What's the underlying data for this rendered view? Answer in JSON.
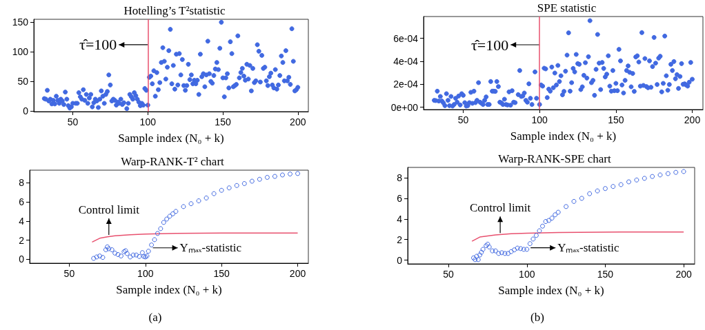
{
  "chart_data": [
    {
      "type": "scatter",
      "title": "Hotelling’s T²statistic",
      "xlabel": "Sample index (N₀ + k)",
      "marker": "circle",
      "color": "#4169e1",
      "x": [
        31,
        32,
        33,
        34,
        35,
        36,
        37,
        38,
        39,
        40,
        41,
        42,
        43,
        44,
        45,
        46,
        47,
        48,
        49,
        50,
        52,
        53,
        54,
        55,
        56,
        57,
        58,
        59,
        60,
        61,
        62,
        63,
        64,
        65,
        66,
        67,
        68,
        69,
        70,
        71,
        72,
        73,
        74,
        75,
        76,
        77,
        78,
        79,
        80,
        81,
        82,
        83,
        84,
        86,
        87,
        88,
        89,
        90,
        91,
        92,
        93,
        94,
        95,
        96,
        97,
        98,
        99,
        100,
        101,
        102,
        103,
        104,
        105,
        106,
        107,
        108,
        109,
        110,
        111,
        112,
        113,
        114,
        115,
        116,
        117,
        118,
        119,
        120,
        121,
        122,
        123,
        124,
        125,
        126,
        127,
        128,
        129,
        130,
        131,
        132,
        133,
        134,
        135,
        136,
        137,
        138,
        139,
        140,
        141,
        142,
        143,
        144,
        145,
        146,
        147,
        148,
        149,
        150,
        151,
        152,
        153,
        154,
        155,
        156,
        157,
        158,
        159,
        160,
        161,
        162,
        163,
        164,
        165,
        166,
        167,
        168,
        169,
        170,
        171,
        172,
        173,
        174,
        175,
        176,
        177,
        178,
        179,
        180,
        181,
        182,
        183,
        184,
        185,
        186,
        187,
        188,
        189,
        190,
        191,
        192,
        193,
        194,
        195,
        196,
        197,
        198,
        199,
        200
      ],
      "values": [
        21,
        20,
        35,
        17,
        20,
        12,
        18,
        12,
        25,
        18,
        13,
        20,
        17,
        11,
        32,
        20,
        9,
        5,
        7,
        13,
        13,
        13,
        31,
        24,
        20,
        36,
        18,
        28,
        13,
        22,
        28,
        7,
        14,
        20,
        17,
        6,
        20,
        34,
        25,
        13,
        28,
        33,
        61,
        44,
        17,
        20,
        18,
        10,
        15,
        13,
        20,
        11,
        14,
        4,
        13,
        28,
        24,
        20,
        31,
        26,
        20,
        15,
        9,
        13,
        10,
        38,
        35,
        10,
        57,
        59,
        46,
        68,
        25,
        65,
        36,
        48,
        82,
        107,
        84,
        54,
        74,
        102,
        138,
        46,
        77,
        37,
        96,
        44,
        97,
        61,
        87,
        43,
        35,
        43,
        79,
        53,
        61,
        46,
        52,
        46,
        52,
        28,
        96,
        58,
        63,
        41,
        61,
        118,
        63,
        50,
        47,
        60,
        71,
        82,
        70,
        106,
        150,
        56,
        24,
        56,
        63,
        39,
        117,
        97,
        41,
        43,
        45,
        127,
        56,
        65,
        72,
        59,
        52,
        79,
        54,
        77,
        34,
        72,
        48,
        51,
        112,
        101,
        49,
        94,
        72,
        74,
        51,
        43,
        58,
        64,
        44,
        39,
        70,
        37,
        44,
        60,
        93,
        82,
        51,
        102,
        51,
        57,
        45,
        139,
        84,
        34,
        36,
        40
      ],
      "xlim": [
        24,
        207
      ],
      "xticks": [
        50,
        100,
        150,
        200
      ],
      "ylim": [
        -1,
        155
      ],
      "yticks": [
        0,
        50,
        100,
        150
      ],
      "ref_lines": [
        {
          "axis": "x",
          "value": 100,
          "color": "#e8506e"
        }
      ],
      "annotations": [
        {
          "text": "τ̂=100",
          "x": 100,
          "y": 112
        }
      ]
    },
    {
      "type": "scatter",
      "title": "SPE statistic",
      "xlabel": "Sample index (N₀ + k)",
      "marker": "circle",
      "color": "#4169e1",
      "x": [
        31,
        32,
        33,
        34,
        35,
        36,
        37,
        38,
        39,
        40,
        41,
        42,
        43,
        44,
        45,
        46,
        47,
        48,
        49,
        50,
        51,
        52,
        53,
        54,
        55,
        56,
        57,
        58,
        59,
        60,
        61,
        62,
        63,
        64,
        65,
        66,
        67,
        68,
        69,
        70,
        71,
        72,
        73,
        74,
        75,
        76,
        77,
        78,
        79,
        80,
        81,
        82,
        83,
        84,
        86,
        87,
        88,
        89,
        90,
        91,
        92,
        93,
        94,
        95,
        97,
        98,
        100,
        101,
        102,
        103,
        104,
        105,
        106,
        107,
        108,
        109,
        110,
        111,
        112,
        113,
        114,
        115,
        116,
        117,
        118,
        119,
        120,
        121,
        122,
        123,
        124,
        125,
        126,
        127,
        128,
        129,
        130,
        131,
        132,
        133,
        134,
        135,
        136,
        137,
        138,
        139,
        140,
        141,
        142,
        143,
        144,
        145,
        146,
        147,
        148,
        149,
        150,
        151,
        152,
        153,
        154,
        155,
        156,
        157,
        158,
        159,
        160,
        161,
        162,
        163,
        164,
        165,
        166,
        167,
        168,
        169,
        170,
        171,
        172,
        173,
        174,
        175,
        176,
        177,
        178,
        179,
        180,
        181,
        182,
        183,
        184,
        185,
        186,
        187,
        188,
        189,
        190,
        191,
        192,
        193,
        194,
        195,
        196,
        197,
        198,
        199,
        200
      ],
      "values": [
        6e-05,
        5.8e-05,
        0.00014,
        5.4e-05,
        9.4e-05,
        5.4e-05,
        3.8e-05,
        1.4e-05,
        0.000118,
        6e-05,
        1.4e-05,
        9.4e-05,
        1e-05,
        2.4e-05,
        7.8e-05,
        4.4e-05,
        9.8e-05,
        2e-05,
        0.000118,
        0.000104,
        4e-05,
        1e-05,
        1.4e-05,
        4e-05,
        0.00013,
        3.4e-05,
        0.00014,
        4e-05,
        6e-05,
        0.000214,
        4.4e-05,
        3.4e-05,
        2.4e-05,
        6e-05,
        9e-05,
        2.4e-05,
        2.4e-05,
        0.000224,
        0.00014,
        0.00014,
        0.000138,
        0.000224,
        0.00018,
        4.4e-05,
        3.8e-05,
        2.4e-05,
        7e-05,
        2.4e-05,
        2e-05,
        0.000134,
        1.8e-05,
        0.000144,
        4.4e-05,
        4e-05,
        0.00011,
        0.00032,
        9.4e-05,
        9.8e-05,
        0.000124,
        6e-05,
        4.4e-05,
        0.000204,
        7.8e-05,
        2.4e-05,
        0.000308,
        7.8e-05,
        2.4e-05,
        0.000194,
        0.000184,
        0.00034,
        0.000334,
        8.4e-05,
        0.000158,
        0.00014,
        0.00035,
        0.00017,
        0.000298,
        0.000194,
        0.000364,
        0.000224,
        0.000274,
        0.000108,
        0.000138,
        0.000314,
        0.000454,
        0.000648,
        0.00014,
        0.000214,
        0.000338,
        0.000308,
        0.00046,
        0.00038,
        0.000374,
        0.000154,
        0.000178,
        0.000278,
        0.000388,
        0.000254,
        0.00044,
        0.000754,
        0.000214,
        0.000234,
        0.000104,
        0.00033,
        0.000634,
        0.000384,
        0.000154,
        0.00039,
        0.000338,
        0.000264,
        0.000288,
        0.000448,
        0.000184,
        0.00014,
        0.00032,
        0.000144,
        0.000208,
        0.000144,
        0.000504,
        0.000404,
        0.000194,
        0.000124,
        0.000234,
        0.00032,
        0.00036,
        0.000304,
        0.000178,
        0.000294,
        0.000138,
        0.000438,
        0.000448,
        0.000394,
        0.000184,
        0.00065,
        0.00019,
        0.000424,
        0.00018,
        0.00017,
        0.000404,
        0.000174,
        0.000354,
        0.000608,
        0.000384,
        0.000198,
        0.000428,
        0.000444,
        0.000134,
        0.000208,
        0.00062,
        0.000274,
        0.000148,
        0.000198,
        0.000374,
        0.00032,
        0.000398,
        0.000248,
        0.000284,
        0.000164,
        0.000268,
        0.00038,
        0.0002,
        0.000204,
        0.000194,
        0.000184,
        0.000218,
        0.00039,
        0.000244
      ],
      "xlim": [
        24,
        207
      ],
      "xticks": [
        50,
        100,
        150,
        200
      ],
      "ylim": [
        -2e-05,
        0.00079
      ],
      "yticks": [
        {
          "value": 0,
          "label": "0e+00"
        },
        {
          "value": 0.0002,
          "label": "2e-04"
        },
        {
          "value": 0.0004,
          "label": "4e-04"
        },
        {
          "value": 0.0006,
          "label": "6e-04"
        }
      ],
      "ref_lines": [
        {
          "axis": "x",
          "value": 100,
          "color": "#e8506e"
        }
      ],
      "annotations": [
        {
          "text": "τ̂=100",
          "x": 100,
          "y": 0.000544
        }
      ]
    },
    {
      "type": "scatter",
      "title": "Warp-RANK-T² chart",
      "xlabel": "Sample index (N₀ + k)",
      "marker": "circle",
      "series": [
        {
          "type": "line",
          "marker": "none",
          "color": "#e8506e",
          "x": [
            65,
            70,
            75,
            80,
            90,
            100,
            120,
            150,
            200
          ],
          "values": [
            1.8,
            2.2,
            2.35,
            2.45,
            2.57,
            2.64,
            2.7,
            2.74,
            2.74
          ]
        },
        {
          "color": "#4169e1",
          "x": [
            66,
            68,
            70,
            72,
            74,
            75,
            76,
            78,
            80,
            82,
            84,
            86,
            87,
            88,
            90,
            92,
            94,
            96,
            98,
            99,
            100,
            101,
            102,
            104,
            106,
            108,
            110,
            112,
            114,
            116,
            118,
            120,
            125,
            130,
            135,
            140,
            145,
            150,
            155,
            160,
            165,
            170,
            175,
            180,
            185,
            190,
            195,
            200
          ],
          "values": [
            0.1,
            0.25,
            0.35,
            0.2,
            1.0,
            1.3,
            1.1,
            1.0,
            0.65,
            0.5,
            0.35,
            0.8,
            0.9,
            0.6,
            0.25,
            0.45,
            0.45,
            0.3,
            0.7,
            0.3,
            0.25,
            0.35,
            0.85,
            1.5,
            2.05,
            2.7,
            3.2,
            3.85,
            4.2,
            4.5,
            4.75,
            5.0,
            5.5,
            5.8,
            6.1,
            6.4,
            6.85,
            7.2,
            7.45,
            7.7,
            7.9,
            8.15,
            8.35,
            8.55,
            8.65,
            8.8,
            8.9,
            8.95
          ]
        }
      ],
      "xlim": [
        24,
        207
      ],
      "xticks": [
        50,
        100,
        150,
        200
      ],
      "ylim": [
        -0.4,
        9.3
      ],
      "yticks": [
        0,
        2,
        4,
        6,
        8
      ],
      "annotations": [
        {
          "text": "Control limit",
          "x": 76,
          "y": 2.4
        },
        {
          "text": "Yₘₐₓ-statistic",
          "x": 104,
          "y": 1.2
        },
        "(a)"
      ]
    },
    {
      "type": "scatter",
      "title": "Warp-RANK-SPE chart",
      "xlabel": "Sample index (N₀ + k)",
      "marker": "circle",
      "series": [
        {
          "type": "line",
          "marker": "none",
          "color": "#e8506e",
          "x": [
            65,
            70,
            75,
            80,
            90,
            100,
            120,
            160,
            200
          ],
          "values": [
            1.84,
            2.24,
            2.35,
            2.44,
            2.56,
            2.62,
            2.69,
            2.74,
            2.74
          ]
        },
        {
          "color": "#4169e1",
          "x": [
            66,
            67,
            68,
            69,
            70,
            71,
            72,
            74,
            75,
            76,
            78,
            80,
            82,
            84,
            86,
            88,
            90,
            92,
            94,
            96,
            98,
            100,
            102,
            104,
            106,
            108,
            110,
            112,
            114,
            116,
            118,
            120,
            125,
            130,
            135,
            140,
            145,
            150,
            155,
            160,
            165,
            170,
            175,
            180,
            185,
            190,
            195,
            200
          ],
          "values": [
            0.22,
            0.05,
            0.38,
            0.05,
            0.5,
            0.76,
            1.05,
            1.4,
            1.55,
            1.28,
            0.9,
            0.9,
            0.65,
            0.72,
            0.65,
            0.65,
            0.83,
            1.0,
            1.17,
            1.12,
            1.05,
            1.05,
            1.6,
            2.05,
            2.4,
            2.85,
            3.3,
            3.75,
            3.85,
            4.08,
            4.4,
            4.65,
            5.2,
            5.7,
            6.0,
            6.45,
            6.72,
            6.95,
            7.15,
            7.33,
            7.6,
            7.78,
            7.94,
            8.12,
            8.27,
            8.4,
            8.52,
            8.6
          ]
        }
      ],
      "xlim": [
        24,
        207
      ],
      "xticks": [
        50,
        100,
        150,
        200
      ],
      "ylim": [
        -0.36,
        9.0
      ],
      "yticks": [
        0,
        2,
        4,
        6,
        8
      ],
      "annotations": [
        {
          "text": "Control limit",
          "x": 83,
          "y": 2.5
        },
        {
          "text": "Yₘₐₓ-statistic",
          "x": 101.5,
          "y": 1.2
        },
        "(b)"
      ]
    }
  ]
}
